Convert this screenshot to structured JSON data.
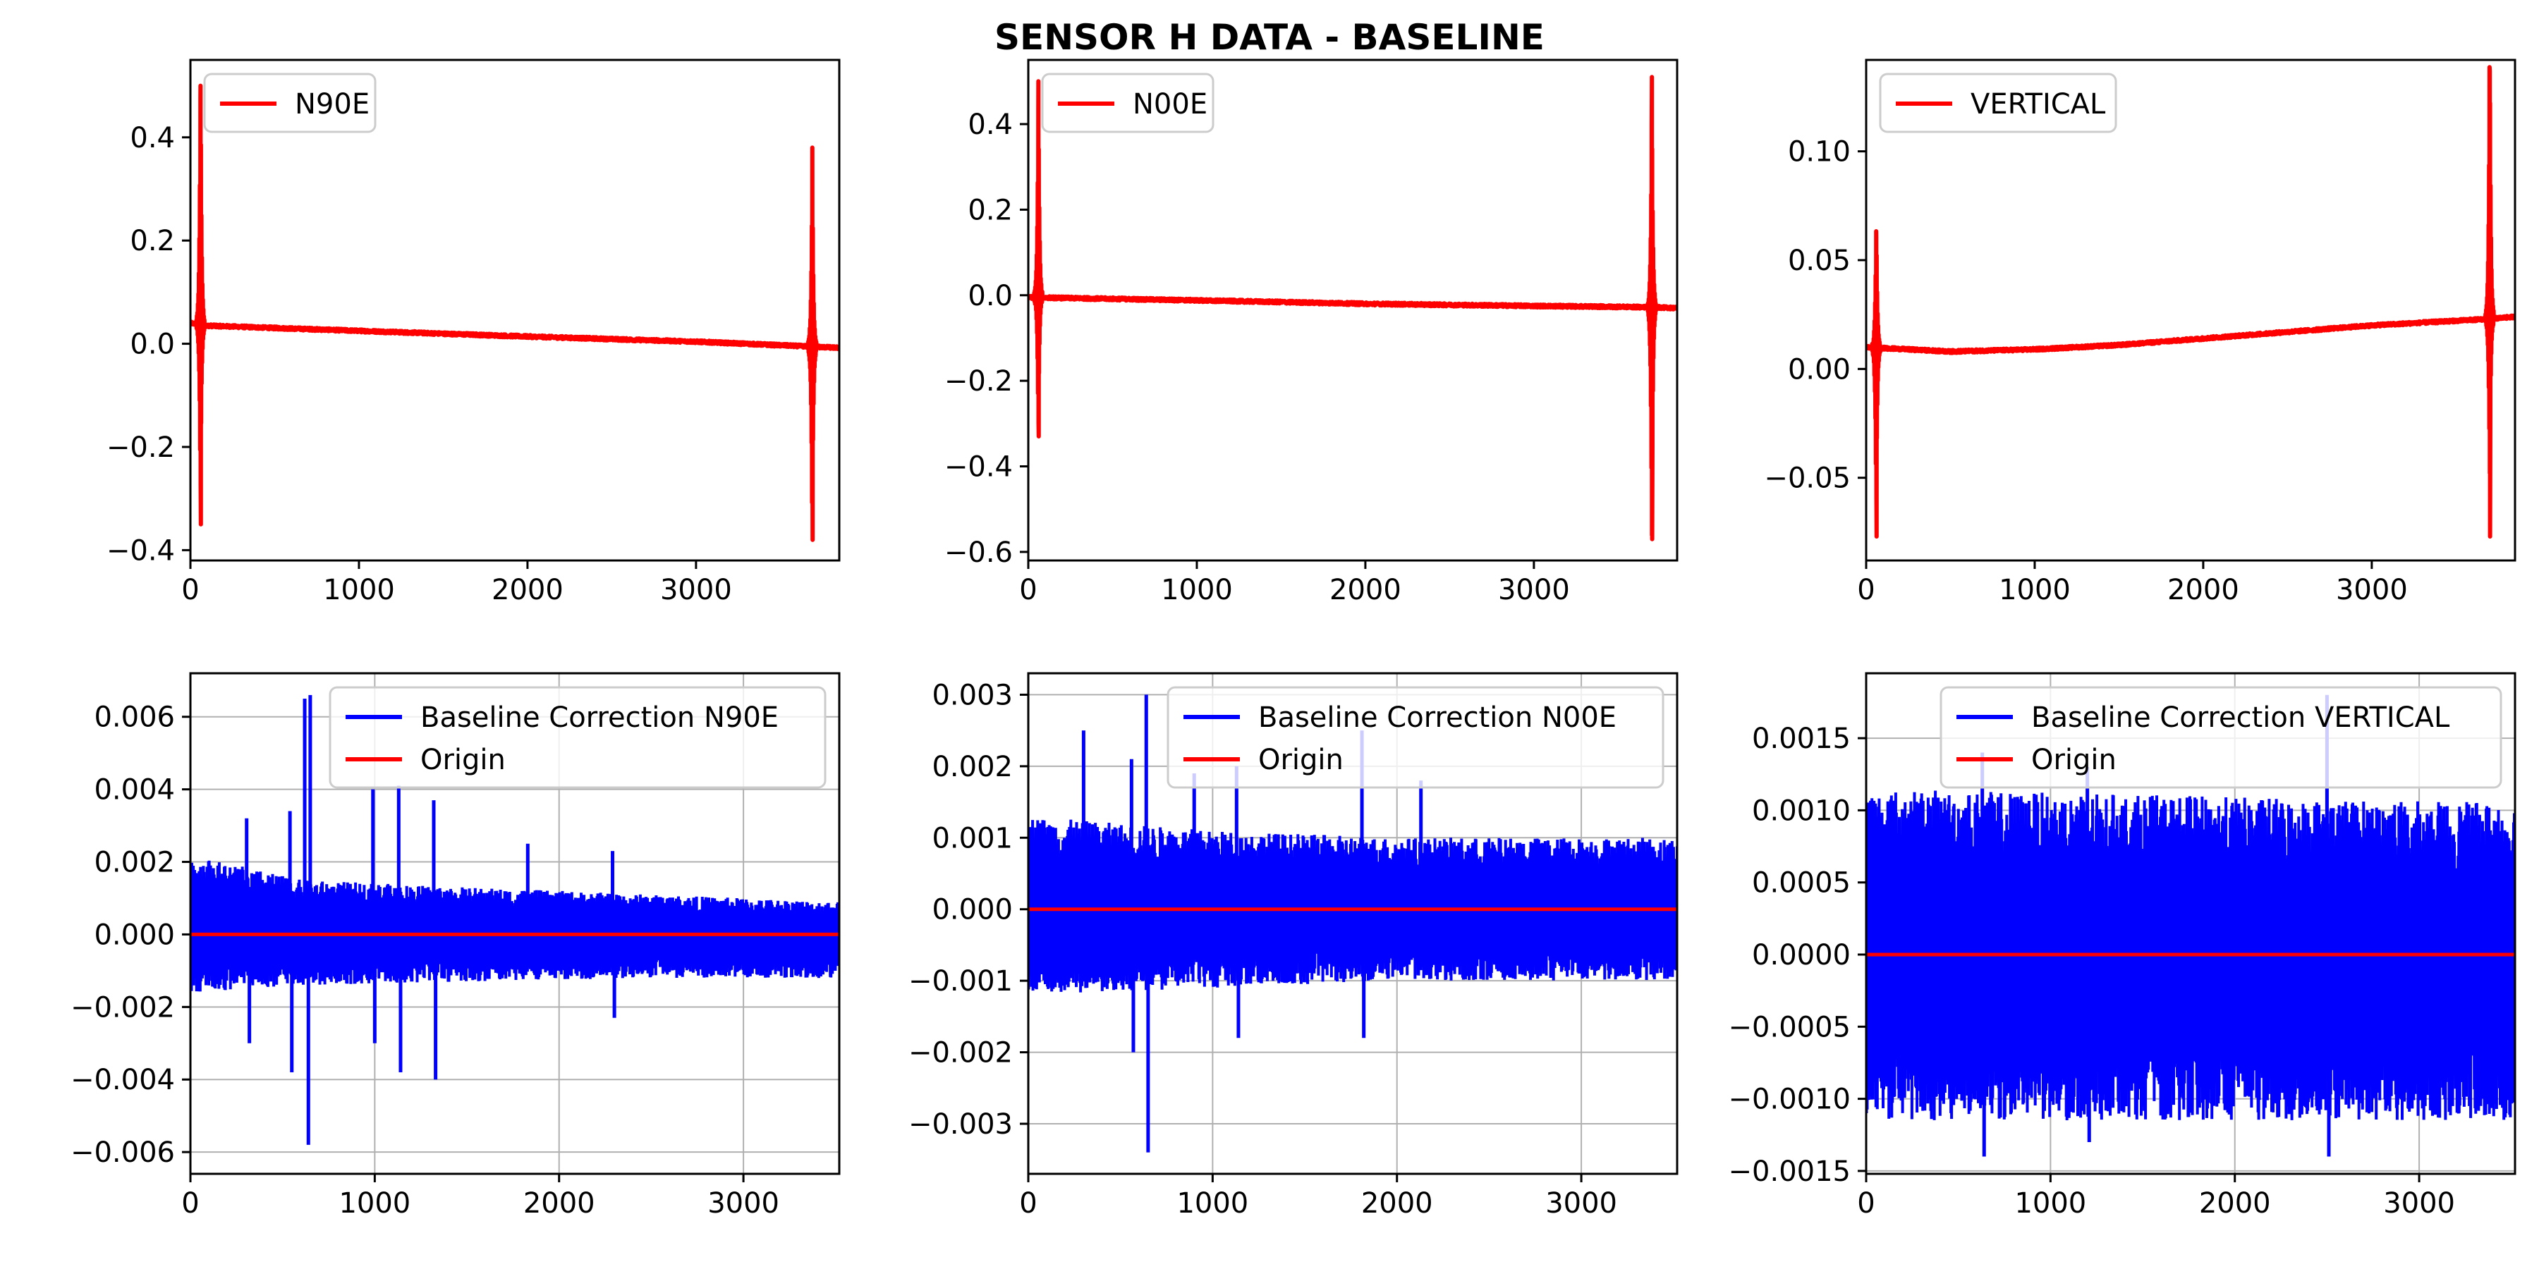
{
  "figure": {
    "title": "SENSOR H DATA - BASELINE"
  },
  "chart_data": [
    {
      "type": "line",
      "xlim": [
        0,
        3850
      ],
      "ylim": [
        -0.42,
        0.55
      ],
      "xticks": [
        0,
        1000,
        2000,
        3000
      ],
      "yticks": [
        -0.4,
        -0.2,
        0.0,
        0.2,
        0.4
      ],
      "ytick_labels": [
        "−0.4",
        "−0.2",
        "0.0",
        "0.2",
        "0.4"
      ],
      "grid": false,
      "legend_position": "upper left",
      "series": [
        {
          "name": "N90E",
          "color": "#ff0000",
          "trend": [
            [
              0,
              0.04
            ],
            [
              100,
              0.035
            ],
            [
              1000,
              0.025
            ],
            [
              2000,
              0.014
            ],
            [
              3000,
              0.004
            ],
            [
              3650,
              -0.005
            ],
            [
              3850,
              -0.008
            ]
          ],
          "bursts": [
            {
              "x": 60,
              "max": 0.5,
              "min": -0.35
            },
            {
              "x": 3690,
              "max": 0.38,
              "min": -0.38
            }
          ]
        }
      ]
    },
    {
      "type": "line",
      "xlim": [
        0,
        3850
      ],
      "ylim": [
        -0.62,
        0.55
      ],
      "xticks": [
        0,
        1000,
        2000,
        3000
      ],
      "yticks": [
        -0.6,
        -0.4,
        -0.2,
        0.0,
        0.2,
        0.4
      ],
      "ytick_labels": [
        "−0.6",
        "−0.4",
        "−0.2",
        "0.0",
        "0.2",
        "0.4"
      ],
      "grid": false,
      "legend_position": "upper left",
      "series": [
        {
          "name": "N00E",
          "color": "#ff0000",
          "trend": [
            [
              0,
              -0.005
            ],
            [
              1000,
              -0.012
            ],
            [
              2000,
              -0.02
            ],
            [
              3000,
              -0.025
            ],
            [
              3700,
              -0.028
            ],
            [
              3850,
              -0.03
            ]
          ],
          "bursts": [
            {
              "x": 60,
              "max": 0.5,
              "min": -0.33
            },
            {
              "x": 3700,
              "max": 0.51,
              "min": -0.57
            }
          ]
        }
      ]
    },
    {
      "type": "line",
      "xlim": [
        0,
        3850
      ],
      "ylim": [
        -0.088,
        0.142
      ],
      "xticks": [
        0,
        1000,
        2000,
        3000
      ],
      "yticks": [
        -0.05,
        0.0,
        0.05,
        0.1
      ],
      "ytick_labels": [
        "−0.05",
        "0.00",
        "0.05",
        "0.10"
      ],
      "grid": false,
      "legend_position": "upper left",
      "series": [
        {
          "name": "VERTICAL",
          "color": "#ff0000",
          "trend": [
            [
              0,
              0.01
            ],
            [
              500,
              0.008
            ],
            [
              1000,
              0.009
            ],
            [
              1500,
              0.011
            ],
            [
              2000,
              0.014
            ],
            [
              2500,
              0.017
            ],
            [
              3000,
              0.02
            ],
            [
              3700,
              0.023
            ],
            [
              3850,
              0.024
            ]
          ],
          "bursts": [
            {
              "x": 60,
              "max": 0.061,
              "min": -0.077
            },
            {
              "x": 3700,
              "max": 0.137,
              "min": -0.077
            }
          ]
        }
      ]
    },
    {
      "type": "line",
      "xlim": [
        0,
        3520
      ],
      "ylim": [
        -0.0066,
        0.0072
      ],
      "xticks": [
        0,
        1000,
        2000,
        3000
      ],
      "yticks": [
        -0.006,
        -0.004,
        -0.002,
        0.0,
        0.002,
        0.004,
        0.006
      ],
      "ytick_labels": [
        "−0.006",
        "−0.004",
        "−0.002",
        "0.000",
        "0.002",
        "0.004",
        "0.006"
      ],
      "grid": true,
      "legend_position": "upper right",
      "series": [
        {
          "name": "Baseline Correction N90E",
          "color": "#0000ff",
          "envelope": [
            [
              0,
              0.0022,
              -0.0016
            ],
            [
              600,
              0.0015,
              -0.0014
            ],
            [
              1500,
              0.0013,
              -0.0013
            ],
            [
              2500,
              0.0011,
              -0.0012
            ],
            [
              3520,
              0.0009,
              -0.0012
            ]
          ],
          "spikes": [
            [
              305,
              0.0032
            ],
            [
              320,
              -0.003
            ],
            [
              540,
              0.0034
            ],
            [
              550,
              -0.0038
            ],
            [
              620,
              0.0065
            ],
            [
              640,
              -0.0058
            ],
            [
              650,
              0.0066
            ],
            [
              990,
              0.004
            ],
            [
              1000,
              -0.003
            ],
            [
              1130,
              0.0041
            ],
            [
              1140,
              -0.0038
            ],
            [
              1320,
              0.0037
            ],
            [
              1330,
              -0.004
            ],
            [
              1830,
              0.0025
            ],
            [
              2290,
              0.0023
            ],
            [
              2300,
              -0.0023
            ]
          ]
        },
        {
          "name": "Origin",
          "color": "#ff0000",
          "constant": 0.0
        }
      ]
    },
    {
      "type": "line",
      "xlim": [
        0,
        3520
      ],
      "ylim": [
        -0.0037,
        0.0033
      ],
      "xticks": [
        0,
        1000,
        2000,
        3000
      ],
      "yticks": [
        -0.003,
        -0.002,
        -0.001,
        0.0,
        0.001,
        0.002,
        0.003
      ],
      "ytick_labels": [
        "−0.003",
        "−0.002",
        "−0.001",
        "0.000",
        "0.001",
        "0.002",
        "0.003"
      ],
      "grid": true,
      "legend_position": "upper right",
      "series": [
        {
          "name": "Baseline Correction N00E",
          "color": "#0000ff",
          "envelope": [
            [
              0,
              0.0013,
              -0.0012
            ],
            [
              1000,
              0.0011,
              -0.0011
            ],
            [
              2000,
              0.001,
              -0.001
            ],
            [
              3520,
              0.001,
              -0.001
            ]
          ],
          "spikes": [
            [
              300,
              0.0025
            ],
            [
              560,
              0.0021
            ],
            [
              570,
              -0.002
            ],
            [
              640,
              0.003
            ],
            [
              650,
              -0.0034
            ],
            [
              900,
              0.0019
            ],
            [
              1130,
              0.002
            ],
            [
              1140,
              -0.0018
            ],
            [
              1810,
              0.0025
            ],
            [
              1820,
              -0.0018
            ],
            [
              2130,
              0.0018
            ]
          ]
        },
        {
          "name": "Origin",
          "color": "#ff0000",
          "constant": 0.0
        }
      ]
    },
    {
      "type": "line",
      "xlim": [
        0,
        3520
      ],
      "ylim": [
        -0.00152,
        0.00195
      ],
      "xticks": [
        0,
        1000,
        2000,
        3000
      ],
      "yticks": [
        -0.0015,
        -0.001,
        -0.0005,
        0.0,
        0.0005,
        0.001,
        0.0015
      ],
      "ytick_labels": [
        "−0.0015",
        "−0.0010",
        "−0.0005",
        "0.0000",
        "0.0005",
        "0.0010",
        "0.0015"
      ],
      "grid": true,
      "legend_position": "upper right",
      "series": [
        {
          "name": "Baseline Correction VERTICAL",
          "color": "#0000ff",
          "envelope": [
            [
              0,
              0.00115,
              -0.00115
            ],
            [
              3520,
              0.00105,
              -0.00115
            ]
          ],
          "spikes": [
            [
              630,
              0.0014
            ],
            [
              640,
              -0.0014
            ],
            [
              2500,
              0.0018
            ],
            [
              2510,
              -0.0014
            ],
            [
              1200,
              0.0013
            ],
            [
              1210,
              -0.0013
            ]
          ]
        },
        {
          "name": "Origin",
          "color": "#ff0000",
          "constant": 0.0
        }
      ]
    }
  ]
}
